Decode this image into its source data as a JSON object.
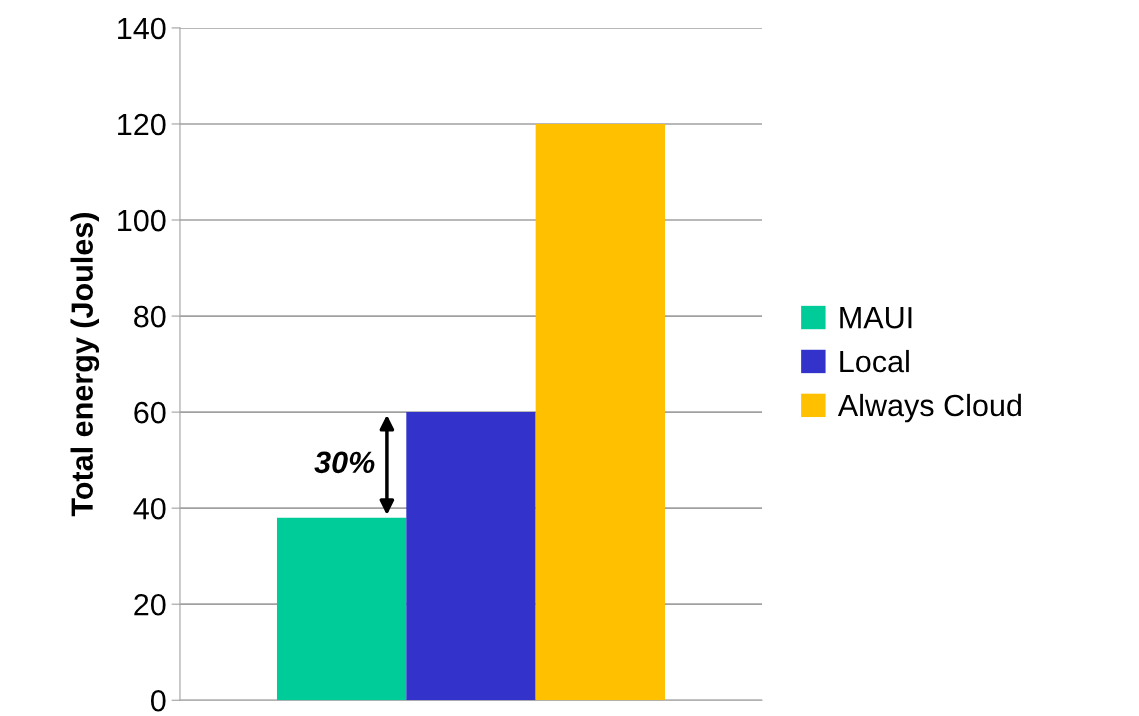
{
  "chart_data": {
    "type": "bar",
    "ylabel": "Total energy (Joules)",
    "categories": [
      null
    ],
    "series": [
      {
        "name": "MAUI",
        "color": "#00cc99",
        "values": [
          38
        ]
      },
      {
        "name": "Local",
        "color": "#3333cc",
        "values": [
          60
        ]
      },
      {
        "name": "Always Cloud",
        "color": "#ffc000",
        "values": [
          120
        ]
      }
    ],
    "ylim": [
      0,
      140
    ],
    "yticks": [
      0,
      20,
      40,
      60,
      80,
      100,
      120,
      140
    ],
    "grid": "y",
    "legend": "right",
    "annotations": [
      "30%"
    ]
  }
}
